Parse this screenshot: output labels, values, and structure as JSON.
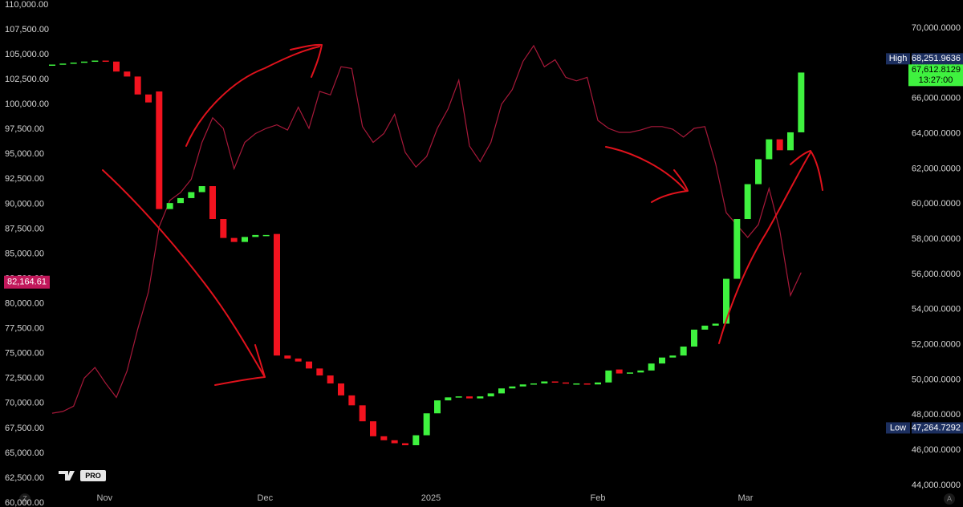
{
  "chart_data": {
    "type": "candlestick",
    "xlim": [
      -4.875,
      79.875
    ],
    "xticks": [
      {
        "value": 4.9,
        "label": "Nov"
      },
      {
        "value": 19.9,
        "label": "Dec"
      },
      {
        "value": 35.4,
        "label": "2025"
      },
      {
        "value": 51,
        "label": "Feb"
      },
      {
        "value": 64.8,
        "label": "Mar"
      }
    ],
    "ylim": [
      59600,
      110480
    ],
    "yticks": [
      {
        "value": 60000,
        "label": "60,000.00"
      },
      {
        "value": 62500,
        "label": "62,500.00"
      },
      {
        "value": 65000,
        "label": "65,000.00"
      },
      {
        "value": 67500,
        "label": "67,500.00"
      },
      {
        "value": 70000,
        "label": "70,000.00"
      },
      {
        "value": 72500,
        "label": "72,500.00"
      },
      {
        "value": 75000,
        "label": "75,000.00"
      },
      {
        "value": 77500,
        "label": "77,500.00"
      },
      {
        "value": 80000,
        "label": "80,000.00"
      },
      {
        "value": 82500,
        "label": "82,500.00"
      },
      {
        "value": 85000,
        "label": "85,000.00"
      },
      {
        "value": 87500,
        "label": "87,500.00"
      },
      {
        "value": 90000,
        "label": "90,000.00"
      },
      {
        "value": 92500,
        "label": "92,500.00"
      },
      {
        "value": 95000,
        "label": "95,000.00"
      },
      {
        "value": 97500,
        "label": "97,500.00"
      },
      {
        "value": 100000,
        "label": "100,000.00"
      },
      {
        "value": 102500,
        "label": "102,500.00"
      },
      {
        "value": 105000,
        "label": "105,000.00"
      },
      {
        "value": 107500,
        "label": "107,500.00"
      },
      {
        "value": 110000,
        "label": "110,000.00"
      }
    ],
    "y2lim": [
      42768,
      71596
    ],
    "y2ticks": [
      {
        "value": 44000,
        "label": "44,000.0000"
      },
      {
        "value": 46000,
        "label": "46,000.0000"
      },
      {
        "value": 48000,
        "label": "48,000.0000"
      },
      {
        "value": 50000,
        "label": "50,000.0000"
      },
      {
        "value": 52000,
        "label": "52,000.0000"
      },
      {
        "value": 54000,
        "label": "54,000.0000"
      },
      {
        "value": 56000,
        "label": "56,000.0000"
      },
      {
        "value": 58000,
        "label": "58,000.0000"
      },
      {
        "value": 60000,
        "label": "60,000.0000"
      },
      {
        "value": 62000,
        "label": "62,000.0000"
      },
      {
        "value": 64000,
        "label": "64,000.0000"
      },
      {
        "value": 66000,
        "label": "66,000.0000"
      },
      {
        "value": 68000,
        "label": "68,000.0000"
      },
      {
        "value": 70000,
        "label": "70,000.0000"
      }
    ],
    "candles": {
      "up_color": "#3ff23f",
      "down_color": "#f2131f",
      "open": [
        103900,
        104000,
        104100,
        104200,
        104300,
        104400,
        104300,
        103300,
        102800,
        101000,
        101300,
        89500,
        90100,
        90600,
        91200,
        91800,
        88500,
        86600,
        86200,
        86700,
        86900,
        87000,
        74800,
        74500,
        74200,
        73500,
        72800,
        72000,
        70800,
        69800,
        68200,
        66700,
        66300,
        66000,
        65800,
        66800,
        69000,
        70300,
        70600,
        70700,
        70500,
        70700,
        71000,
        71500,
        71700,
        71900,
        72000,
        72200,
        72100,
        72000,
        72000,
        71900,
        72100,
        73400,
        73000,
        73100,
        73300,
        74000,
        74600,
        74800,
        75700,
        77400,
        77800,
        78000,
        82500,
        88500,
        92000,
        94500,
        96500,
        95400,
        97200
      ],
      "close": [
        104000,
        104100,
        104200,
        104300,
        104400,
        104300,
        103300,
        102800,
        101000,
        100200,
        89500,
        90100,
        90600,
        91200,
        91800,
        88500,
        86600,
        86200,
        86700,
        86900,
        86900,
        74800,
        74500,
        74200,
        73500,
        72800,
        72000,
        70800,
        69800,
        68200,
        66700,
        66300,
        66000,
        65800,
        66800,
        69000,
        70300,
        70600,
        70700,
        70500,
        70700,
        71000,
        71500,
        71700,
        71900,
        72000,
        72200,
        72100,
        72000,
        72000,
        71900,
        72100,
        73300,
        73000,
        73100,
        73300,
        74000,
        74600,
        74800,
        75700,
        77400,
        77800,
        78000,
        82500,
        88500,
        92000,
        94500,
        96500,
        95400,
        97200,
        103200
      ]
    },
    "line": {
      "axis": "y2",
      "color": "#a8193a",
      "values": [
        48100,
        48200,
        48500,
        50100,
        50700,
        49800,
        49000,
        50500,
        52900,
        55000,
        58700,
        60200,
        60650,
        61400,
        63500,
        64900,
        64300,
        62000,
        63500,
        64000,
        64300,
        64500,
        64200,
        65500,
        64300,
        66400,
        66200,
        67800,
        67700,
        64400,
        63500,
        64000,
        65100,
        62930,
        62100,
        62700,
        64300,
        65400,
        67040,
        63300,
        62400,
        63500,
        65670,
        66500,
        68100,
        69000,
        67800,
        68200,
        67200,
        67000,
        67200,
        64750,
        64300,
        64070,
        64070,
        64200,
        64400,
        64400,
        64250,
        63800,
        64300,
        64400,
        62300,
        59500,
        58800,
        58100,
        58830,
        60880,
        58500,
        54800,
        56100
      ]
    },
    "price_tags": {
      "high": {
        "label": "High",
        "value": 68251.9636,
        "value_label": "68,251.9636",
        "color": "#1c2f5f"
      },
      "last": {
        "value": 67612.8129,
        "value_label": "67,612.8129",
        "countdown": "13:27:00",
        "color": "#3ff23f"
      },
      "low": {
        "label": "Low",
        "value": 47264.7292,
        "value_label": "47,264.7292",
        "color": "#1c2f5f"
      },
      "left": {
        "value": 82164.61,
        "value_label": "82,164.61",
        "color": "#c2185b"
      }
    },
    "logo": "PRO",
    "corner_left": "Z",
    "corner_right": "A"
  }
}
